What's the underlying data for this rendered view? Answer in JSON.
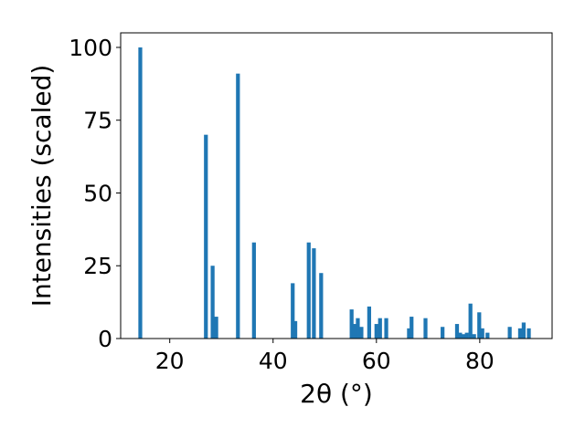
{
  "chart_data": {
    "type": "bar",
    "xlabel": "2θ (°)",
    "ylabel": "Intensities (scaled)",
    "xlim": [
      10.5,
      94.0
    ],
    "ylim": [
      0,
      105
    ],
    "xticks": [
      20,
      40,
      60,
      80
    ],
    "yticks": [
      0,
      25,
      50,
      75,
      100
    ],
    "bar_width": 0.75,
    "bar_color": "#1f77b4",
    "grid": false,
    "x": [
      14.3,
      27.0,
      28.3,
      29.0,
      33.2,
      36.3,
      43.8,
      44.3,
      46.9,
      47.9,
      49.3,
      55.2,
      55.8,
      56.4,
      57.1,
      58.6,
      60.0,
      60.7,
      61.9,
      66.3,
      66.8,
      69.5,
      72.8,
      75.6,
      76.2,
      76.9,
      77.5,
      78.2,
      78.9,
      79.9,
      80.5,
      81.5,
      85.8,
      87.8,
      88.5,
      89.5
    ],
    "values": [
      100,
      70,
      25,
      7.5,
      91,
      33,
      19,
      6,
      33,
      31,
      22.5,
      10,
      5,
      7,
      4,
      11,
      5,
      7,
      7,
      3.5,
      7.5,
      7,
      4,
      5,
      2,
      1.5,
      2,
      12,
      1.5,
      9,
      3.5,
      2,
      4,
      3.5,
      5.5,
      3.5
    ]
  }
}
